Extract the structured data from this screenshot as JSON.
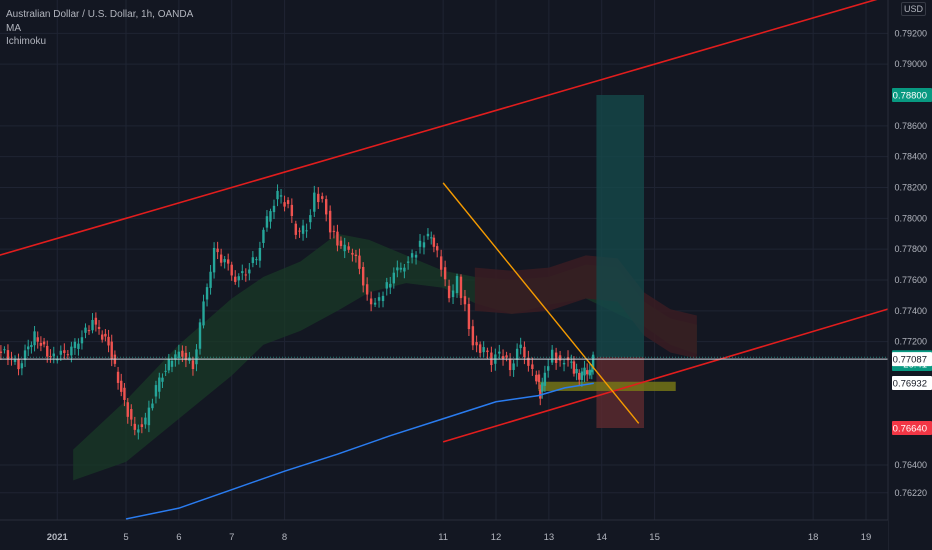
{
  "legend": {
    "symbol": "Australian Dollar / U.S. Dollar, 1h, OANDA",
    "indicators": [
      "MA",
      "Ichimoku"
    ]
  },
  "currency": "USD",
  "chart_data": {
    "type": "line",
    "title": "Australian Dollar / U.S. Dollar, 1h, OANDA",
    "ylim": [
      0.7605,
      0.7945
    ],
    "y_ticks": [
      "0.79200",
      "0.79000",
      "0.78600",
      "0.78400",
      "0.78200",
      "0.78000",
      "0.77800",
      "0.77600",
      "0.77400",
      "0.77200",
      "0.76400",
      "0.76220"
    ],
    "x_ticks": [
      "2021",
      "5",
      "6",
      "7",
      "8",
      "11",
      "12",
      "13",
      "14",
      "15",
      "18",
      "19"
    ],
    "x_tick_days": [
      3.7,
      5,
      6,
      7,
      8,
      11,
      12,
      13,
      14,
      15,
      18,
      19
    ],
    "price_labels": [
      {
        "text": "0.78800",
        "value": 0.788,
        "color": "#089981"
      },
      {
        "text": "0.77099",
        "value": 0.77099,
        "color": "#089981"
      },
      {
        "text": "26:41",
        "value": 0.77055,
        "color": "#089981"
      },
      {
        "text": "0.77087",
        "value": 0.77087,
        "color": "#ffffff"
      },
      {
        "text": "0.76932",
        "value": 0.76932,
        "color": "#ffffff"
      },
      {
        "text": "0.76640",
        "value": 0.7664,
        "color": "#f23645"
      }
    ],
    "price": [
      [
        2.2,
        0.7712
      ],
      [
        2.6,
        0.7716
      ],
      [
        3.0,
        0.7705
      ],
      [
        3.3,
        0.7724
      ],
      [
        3.6,
        0.771
      ],
      [
        4.0,
        0.7714
      ],
      [
        4.4,
        0.7733
      ],
      [
        4.7,
        0.7718
      ],
      [
        5.0,
        0.768
      ],
      [
        5.2,
        0.7662
      ],
      [
        5.4,
        0.7668
      ],
      [
        5.6,
        0.769
      ],
      [
        5.9,
        0.771
      ],
      [
        6.1,
        0.7713
      ],
      [
        6.3,
        0.7704
      ],
      [
        6.5,
        0.7745
      ],
      [
        6.7,
        0.7778
      ],
      [
        6.9,
        0.7772
      ],
      [
        7.1,
        0.776
      ],
      [
        7.3,
        0.7766
      ],
      [
        7.5,
        0.7775
      ],
      [
        7.7,
        0.78
      ],
      [
        7.9,
        0.7815
      ],
      [
        8.1,
        0.7808
      ],
      [
        8.25,
        0.779
      ],
      [
        8.45,
        0.7795
      ],
      [
        8.6,
        0.7814
      ],
      [
        8.75,
        0.7812
      ],
      [
        8.9,
        0.7793
      ],
      [
        9.1,
        0.7781
      ],
      [
        9.25,
        0.778
      ],
      [
        9.45,
        0.777
      ],
      [
        9.6,
        0.7748
      ],
      [
        9.75,
        0.7745
      ],
      [
        9.9,
        0.7752
      ],
      [
        10.1,
        0.7764
      ],
      [
        10.3,
        0.777
      ],
      [
        10.45,
        0.7775
      ],
      [
        10.6,
        0.7783
      ],
      [
        10.75,
        0.779
      ],
      [
        10.85,
        0.7784
      ],
      [
        11.0,
        0.7769
      ],
      [
        11.15,
        0.7748
      ],
      [
        11.3,
        0.776
      ],
      [
        11.45,
        0.7742
      ],
      [
        11.6,
        0.7718
      ],
      [
        11.8,
        0.7714
      ],
      [
        11.95,
        0.7707
      ],
      [
        12.1,
        0.7713
      ],
      [
        12.3,
        0.7704
      ],
      [
        12.5,
        0.7718
      ],
      [
        12.65,
        0.7705
      ],
      [
        12.8,
        0.7697
      ],
      [
        12.85,
        0.7685
      ],
      [
        12.95,
        0.7699
      ],
      [
        13.1,
        0.7712
      ],
      [
        13.25,
        0.7706
      ],
      [
        13.4,
        0.7709
      ],
      [
        13.5,
        0.7702
      ],
      [
        13.6,
        0.7697
      ],
      [
        13.7,
        0.7702
      ],
      [
        13.8,
        0.7699
      ],
      [
        13.85,
        0.771
      ]
    ],
    "ma": [
      [
        5.0,
        0.7605
      ],
      [
        6.0,
        0.7612
      ],
      [
        7.0,
        0.7624
      ],
      [
        8.0,
        0.7636
      ],
      [
        9.0,
        0.7647
      ],
      [
        10.0,
        0.7659
      ],
      [
        11.0,
        0.767
      ],
      [
        12.0,
        0.7681
      ],
      [
        12.8,
        0.7685
      ],
      [
        13.3,
        0.769
      ],
      [
        13.85,
        0.7693
      ]
    ],
    "cloud_upper": [
      [
        4.0,
        0.765
      ],
      [
        5.0,
        0.7682
      ],
      [
        6.0,
        0.7718
      ],
      [
        7.0,
        0.7748
      ],
      [
        7.6,
        0.7762
      ],
      [
        8.3,
        0.7772
      ],
      [
        9.0,
        0.779
      ],
      [
        9.6,
        0.7786
      ],
      [
        10.3,
        0.7776
      ],
      [
        11.0,
        0.7766
      ],
      [
        11.6,
        0.7762
      ],
      [
        12.3,
        0.776
      ],
      [
        13.0,
        0.7762
      ],
      [
        13.7,
        0.777
      ],
      [
        14.3,
        0.7768
      ],
      [
        14.8,
        0.7746
      ],
      [
        15.3,
        0.7735
      ],
      [
        15.8,
        0.7731
      ]
    ],
    "cloud_lower": [
      [
        4.0,
        0.763
      ],
      [
        5.0,
        0.7642
      ],
      [
        6.0,
        0.767
      ],
      [
        7.0,
        0.7698
      ],
      [
        7.6,
        0.7718
      ],
      [
        8.3,
        0.7727
      ],
      [
        9.0,
        0.774
      ],
      [
        9.6,
        0.7752
      ],
      [
        10.3,
        0.7758
      ],
      [
        11.0,
        0.7755
      ],
      [
        11.6,
        0.7745
      ],
      [
        12.3,
        0.7738
      ],
      [
        13.0,
        0.7744
      ],
      [
        13.7,
        0.7748
      ],
      [
        14.3,
        0.7738
      ],
      [
        14.8,
        0.773
      ],
      [
        15.3,
        0.7718
      ],
      [
        15.8,
        0.7712
      ]
    ],
    "channel_upper": [
      [
        2.0,
        0.777
      ],
      [
        19.5,
        0.7945
      ]
    ],
    "channel_lower": [
      [
        11.0,
        0.7655
      ],
      [
        19.5,
        0.7742
      ]
    ],
    "trendline": [
      [
        11.0,
        0.7823
      ],
      [
        14.7,
        0.7667
      ]
    ],
    "support_zone": [
      0.7688,
      0.7694
    ],
    "support_zone_days": [
      12.8,
      15.4
    ],
    "target_box": {
      "days": [
        13.9,
        14.8
      ],
      "entry": 0.77099,
      "target": 0.788
    },
    "stop_box": {
      "days": [
        13.9,
        14.8
      ],
      "entry": 0.77099,
      "stop": 0.7664
    }
  },
  "colors": {
    "background": "#131722",
    "grid": "#1f2433",
    "channel": "#e11d1d",
    "trendline": "#f59b00",
    "ma": "#2a7cf0",
    "cloud": "#1a3a27",
    "cloud_red": "#3a1c22",
    "target": "#15484a",
    "stop": "#5e2a30",
    "zone": "#7a7a16",
    "up": "#26a69a",
    "down": "#ef5350",
    "axis_text": "#b2b5be"
  }
}
